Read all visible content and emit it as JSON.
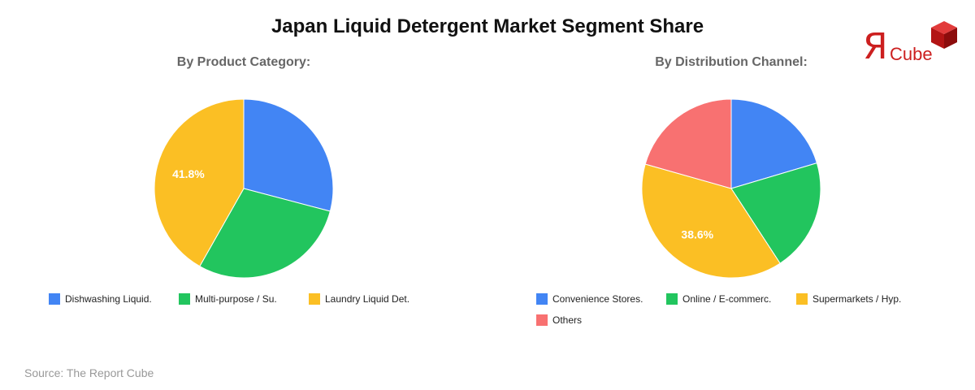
{
  "title": "Japan Liquid Detergent Market Segment Share",
  "source": "Source: The Report Cube",
  "logo": {
    "letter": "Я",
    "text": "Cube",
    "color": "#cc1f1f"
  },
  "chart_data": [
    {
      "type": "pie",
      "title": "By Product Category:",
      "labels": [
        "Dishwashing Liquid.",
        "Multi-purpose / Su.",
        "Laundry Liquid Det."
      ],
      "values": [
        29.1,
        29.1,
        41.8
      ],
      "colors": [
        "#4285f4",
        "#22c55e",
        "#fbbf24"
      ],
      "data_labels": [
        "",
        "",
        "41.8%"
      ],
      "legend_position": "bottom"
    },
    {
      "type": "pie",
      "title": "By Distribution Channel:",
      "labels": [
        "Convenience Stores.",
        "Online / E-commerc.",
        "Supermarkets / Hyp.",
        "Others"
      ],
      "values": [
        20.4,
        20.4,
        38.6,
        20.6
      ],
      "colors": [
        "#4285f4",
        "#22c55e",
        "#fbbf24",
        "#f87171"
      ],
      "data_labels": [
        "",
        "",
        "38.6%",
        ""
      ],
      "legend_position": "bottom"
    }
  ]
}
